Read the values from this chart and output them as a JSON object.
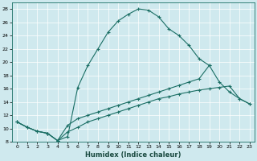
{
  "xlabel": "Humidex (Indice chaleur)",
  "bg_color": "#cfe9ee",
  "grid_color": "#b0d4da",
  "line_color": "#1a6e64",
  "xlim": [
    -0.5,
    23.5
  ],
  "ylim": [
    8,
    29
  ],
  "xticks": [
    0,
    1,
    2,
    3,
    4,
    5,
    6,
    7,
    8,
    9,
    10,
    11,
    12,
    13,
    14,
    15,
    16,
    17,
    18,
    19,
    20,
    21,
    22,
    23
  ],
  "yticks": [
    8,
    10,
    12,
    14,
    16,
    18,
    20,
    22,
    24,
    26,
    28
  ],
  "s1_x": [
    0,
    1,
    2,
    3,
    4,
    5,
    6,
    7,
    8,
    9,
    10,
    11,
    12,
    13,
    14,
    15,
    16,
    17,
    18,
    19
  ],
  "s1_y": [
    11,
    10.2,
    9.6,
    9.3,
    8.2,
    8.8,
    16.2,
    19.5,
    22.0,
    24.5,
    26.2,
    27.2,
    28.0,
    27.8,
    26.8,
    25.0,
    24.0,
    22.5,
    20.5,
    19.5
  ],
  "s2_x": [
    0,
    1,
    2,
    3,
    4,
    5,
    6,
    7,
    8,
    9,
    10,
    11,
    12,
    13,
    14,
    15,
    16,
    17,
    18,
    19,
    20,
    21,
    22,
    23
  ],
  "s2_y": [
    11,
    10.2,
    9.6,
    9.3,
    8.2,
    10.5,
    11.5,
    12.0,
    12.5,
    13.0,
    13.5,
    14.0,
    14.5,
    15.0,
    15.5,
    16.0,
    16.5,
    17.0,
    17.5,
    19.5,
    17.0,
    15.5,
    14.5,
    13.7
  ],
  "s3_x": [
    0,
    1,
    2,
    3,
    4,
    5,
    6,
    7,
    8,
    9,
    10,
    11,
    12,
    13,
    14,
    15,
    16,
    17,
    18,
    19,
    20,
    21,
    22,
    23
  ],
  "s3_y": [
    11,
    10.2,
    9.6,
    9.3,
    8.2,
    9.5,
    10.2,
    11.0,
    11.5,
    12.0,
    12.5,
    13.0,
    13.5,
    14.0,
    14.5,
    14.8,
    15.2,
    15.5,
    15.8,
    16.0,
    16.2,
    16.4,
    14.5,
    13.7
  ]
}
